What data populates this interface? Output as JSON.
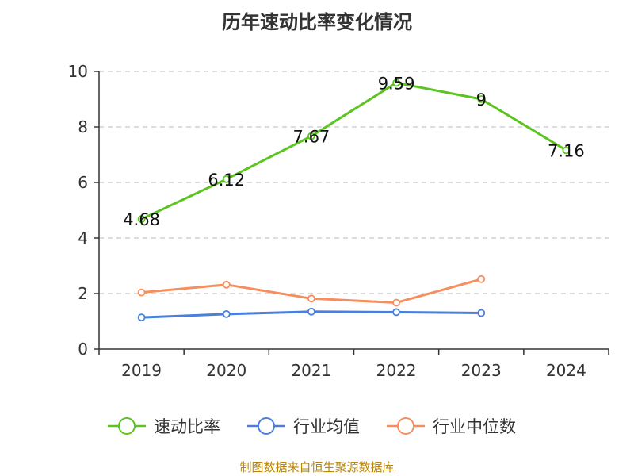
{
  "chart_data": {
    "type": "line",
    "title": "历年速动比率变化情况",
    "xlabel": "",
    "ylabel": "",
    "categories": [
      "2019",
      "2020",
      "2021",
      "2022",
      "2023",
      "2024"
    ],
    "ylim": [
      0,
      10
    ],
    "yticks": [
      0,
      2,
      4,
      6,
      8,
      10
    ],
    "grid": true,
    "legend_position": "bottom",
    "series": [
      {
        "name": "速动比率",
        "color": "#5bc421",
        "show_labels": true,
        "values": [
          4.68,
          6.12,
          7.67,
          9.59,
          9,
          7.16
        ],
        "labels": [
          "4.68",
          "6.12",
          "7.67",
          "9.59",
          "9",
          "7.16"
        ]
      },
      {
        "name": "行业均值",
        "color": "#4a7fdc",
        "show_labels": false,
        "values": [
          1.14,
          1.26,
          1.35,
          1.33,
          1.3,
          null
        ]
      },
      {
        "name": "行业中位数",
        "color": "#f58f5e",
        "show_labels": false,
        "values": [
          2.04,
          2.32,
          1.82,
          1.67,
          2.52,
          null
        ]
      }
    ]
  },
  "footer": {
    "source": "制图数据来自恒生聚源数据库"
  }
}
